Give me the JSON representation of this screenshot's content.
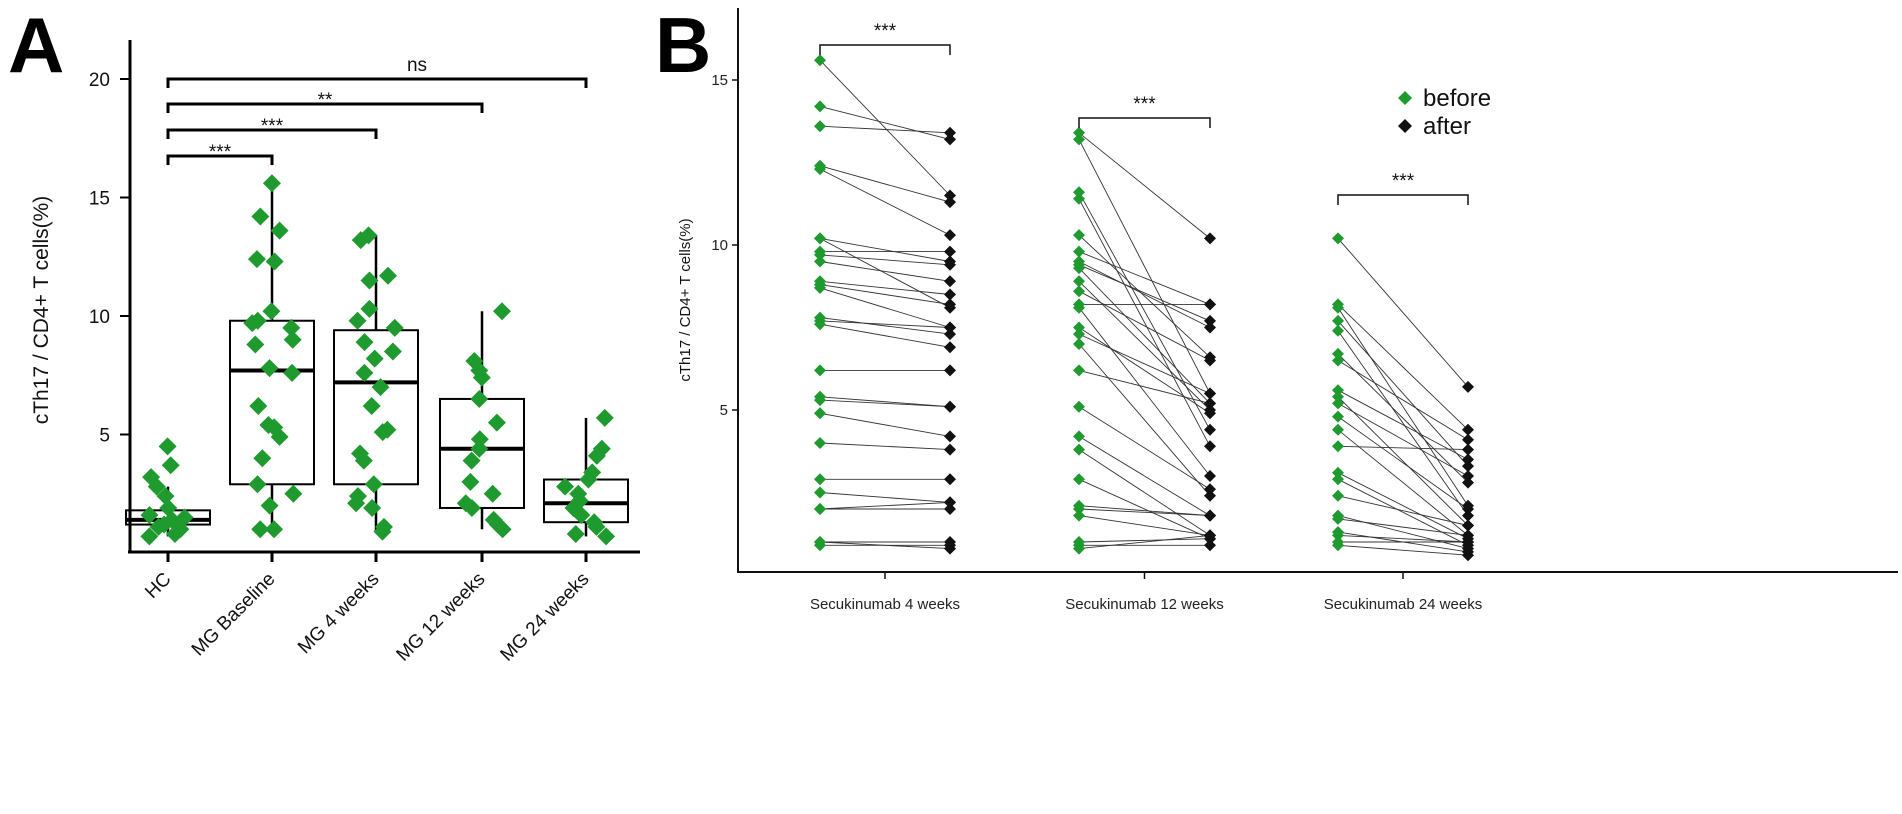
{
  "chart_data": [
    {
      "panel": "A",
      "type": "box",
      "ylabel": "cTh17 / CD4+ T cells(%)",
      "ylim": [
        0,
        20
      ],
      "yticks": [
        5,
        10,
        15,
        20
      ],
      "categories": [
        "HC",
        "MG Baseline",
        "MG 4 weeks",
        "MG 12 weeks",
        "MG 24 weeks"
      ],
      "boxes": [
        {
          "q1": 1.2,
          "median": 1.4,
          "q3": 1.8,
          "whisker_low": 0.7,
          "whisker_high": 2.8
        },
        {
          "q1": 2.9,
          "median": 7.7,
          "q3": 9.8,
          "whisker_low": 1.0,
          "whisker_high": 15.6
        },
        {
          "q1": 2.9,
          "median": 7.2,
          "q3": 9.4,
          "whisker_low": 0.9,
          "whisker_high": 13.4
        },
        {
          "q1": 1.9,
          "median": 4.4,
          "q3": 6.5,
          "whisker_low": 1.0,
          "whisker_high": 10.2
        },
        {
          "q1": 1.3,
          "median": 2.1,
          "q3": 3.1,
          "whisker_low": 0.7,
          "whisker_high": 5.7
        }
      ],
      "points": [
        [
          4.5,
          3.7,
          3.2,
          2.8,
          2.4,
          1.9,
          1.6,
          1.5,
          1.4,
          1.2,
          1.1,
          1.0,
          0.8,
          0.7
        ],
        [
          15.6,
          14.2,
          13.6,
          12.4,
          12.3,
          10.2,
          9.8,
          9.7,
          9.5,
          9.0,
          8.8,
          7.8,
          7.6,
          6.2,
          5.4,
          5.3,
          4.9,
          4.0,
          2.9,
          2.5,
          2.0,
          1.0,
          1.0
        ],
        [
          13.4,
          13.2,
          11.7,
          11.5,
          10.3,
          9.8,
          9.5,
          8.9,
          8.5,
          8.2,
          7.6,
          7.0,
          6.2,
          5.2,
          5.1,
          4.2,
          3.9,
          2.9,
          2.4,
          2.1,
          1.9,
          1.1,
          0.9
        ],
        [
          10.2,
          8.1,
          7.7,
          7.4,
          6.5,
          5.5,
          4.8,
          4.4,
          3.9,
          3.0,
          2.5,
          2.1,
          1.9,
          1.4,
          1.2,
          1.0
        ],
        [
          5.7,
          4.4,
          4.1,
          3.4,
          3.1,
          2.8,
          2.5,
          2.2,
          1.9,
          1.6,
          1.3,
          1.1,
          0.8,
          0.7
        ]
      ],
      "point_color": "#1f9a2e",
      "comparisons": [
        {
          "from": 0,
          "to": 1,
          "label": "***"
        },
        {
          "from": 0,
          "to": 2,
          "label": "***"
        },
        {
          "from": 0,
          "to": 3,
          "label": "**"
        },
        {
          "from": 0,
          "to": 4,
          "label": "ns"
        }
      ]
    },
    {
      "panel": "B",
      "type": "paired-scatter",
      "ylabel": "cTh17 / CD4+ T cells(%)",
      "ylim": [
        0,
        16
      ],
      "yticks": [
        5,
        10,
        15
      ],
      "categories": [
        "Secukinumab 4 weeks",
        "Secukinumab 12 weeks",
        "Secukinumab 24 weeks"
      ],
      "legend": {
        "position": "top-right",
        "entries": [
          {
            "label": "before",
            "color": "#1f9a2e"
          },
          {
            "label": "after",
            "color": "#111111"
          }
        ]
      },
      "significance": [
        "***",
        "***",
        "***"
      ],
      "pairs": [
        [
          [
            15.6,
            11.5
          ],
          [
            14.2,
            13.2
          ],
          [
            13.6,
            13.4
          ],
          [
            12.4,
            11.3
          ],
          [
            12.3,
            10.3
          ],
          [
            10.2,
            9.5
          ],
          [
            10.2,
            8.1
          ],
          [
            9.8,
            9.8
          ],
          [
            9.7,
            9.4
          ],
          [
            9.5,
            8.9
          ],
          [
            8.9,
            8.5
          ],
          [
            8.8,
            8.2
          ],
          [
            8.7,
            7.5
          ],
          [
            7.8,
            7.3
          ],
          [
            7.7,
            7.5
          ],
          [
            7.6,
            6.9
          ],
          [
            6.2,
            6.2
          ],
          [
            5.4,
            5.1
          ],
          [
            5.3,
            5.1
          ],
          [
            4.9,
            4.2
          ],
          [
            4.0,
            3.8
          ],
          [
            2.9,
            2.9
          ],
          [
            2.5,
            2.2
          ],
          [
            2.0,
            2.0
          ],
          [
            2.0,
            2.2
          ],
          [
            1.0,
            1.0
          ],
          [
            1.0,
            0.8
          ],
          [
            0.9,
            0.9
          ]
        ],
        [
          [
            13.4,
            10.2
          ],
          [
            13.2,
            5.5
          ],
          [
            11.6,
            4.4
          ],
          [
            11.4,
            3.9
          ],
          [
            10.3,
            6.6
          ],
          [
            9.8,
            8.2
          ],
          [
            9.5,
            7.5
          ],
          [
            9.4,
            7.7
          ],
          [
            9.3,
            5.2
          ],
          [
            8.9,
            5.0
          ],
          [
            8.6,
            6.5
          ],
          [
            8.2,
            8.2
          ],
          [
            8.1,
            3.0
          ],
          [
            7.5,
            4.9
          ],
          [
            7.3,
            5.5
          ],
          [
            7.0,
            2.4
          ],
          [
            6.2,
            5.2
          ],
          [
            5.1,
            2.6
          ],
          [
            4.2,
            1.8
          ],
          [
            3.8,
            1.2
          ],
          [
            2.9,
            1.1
          ],
          [
            2.1,
            1.8
          ],
          [
            2.0,
            1.8
          ],
          [
            1.8,
            1.2
          ],
          [
            1.0,
            1.1
          ],
          [
            0.9,
            0.9
          ],
          [
            0.8,
            1.2
          ]
        ],
        [
          [
            10.2,
            5.7
          ],
          [
            8.2,
            4.4
          ],
          [
            8.1,
            2.1
          ],
          [
            7.7,
            3.3
          ],
          [
            7.4,
            1.8
          ],
          [
            6.7,
            2.8
          ],
          [
            6.5,
            4.1
          ],
          [
            5.6,
            3.5
          ],
          [
            5.4,
            1.5
          ],
          [
            5.2,
            3.0
          ],
          [
            4.8,
            2.0
          ],
          [
            4.4,
            1.2
          ],
          [
            3.9,
            3.8
          ],
          [
            3.1,
            1.1
          ],
          [
            2.9,
            0.9
          ],
          [
            2.4,
            1.5
          ],
          [
            1.8,
            0.8
          ],
          [
            1.7,
            1.2
          ],
          [
            1.3,
            0.7
          ],
          [
            1.2,
            1.0
          ],
          [
            1.0,
            1.0
          ],
          [
            0.9,
            0.6
          ]
        ]
      ]
    }
  ],
  "panel_labels": {
    "a": "A",
    "b": "B"
  }
}
